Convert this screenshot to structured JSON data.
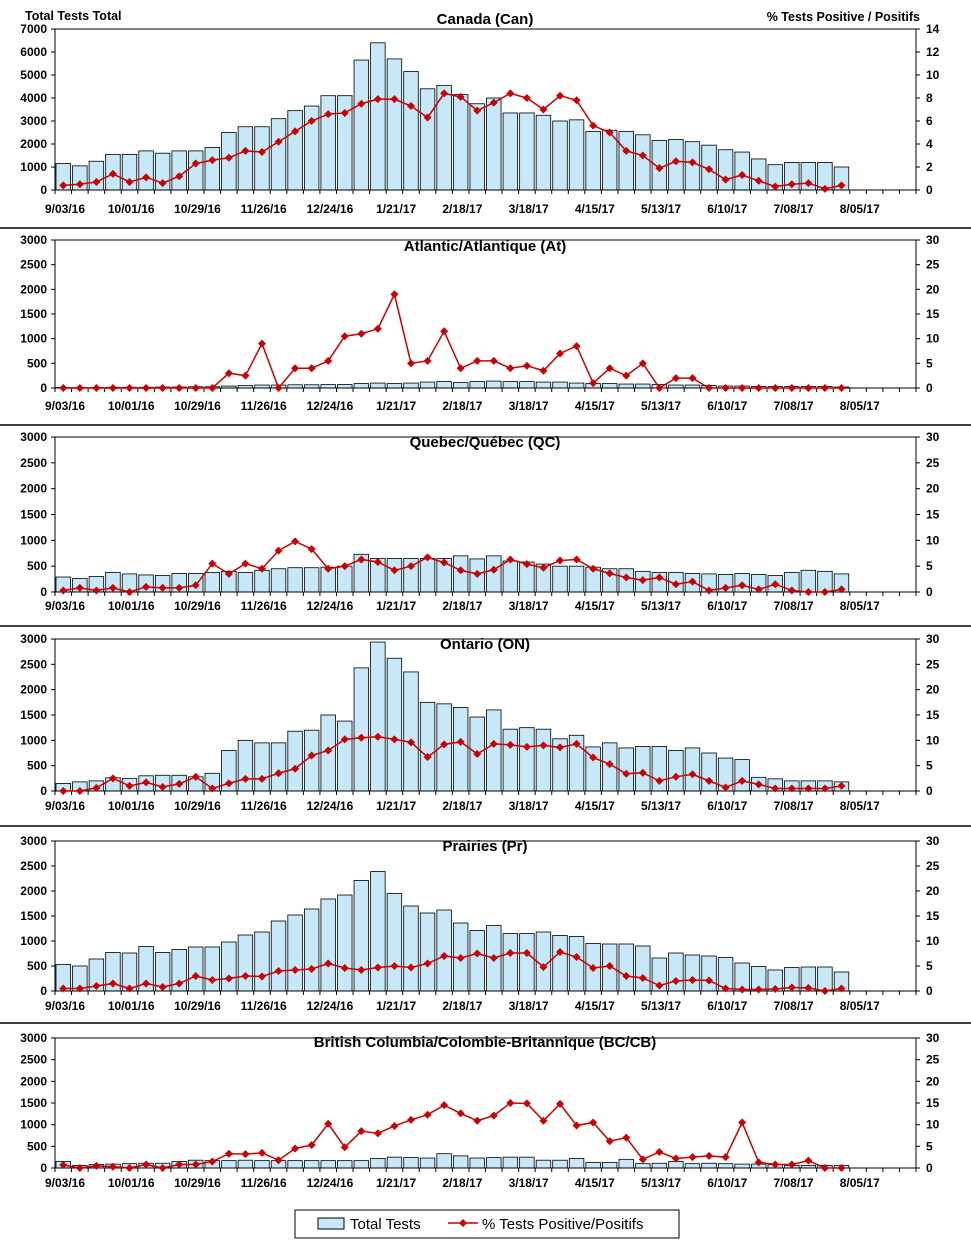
{
  "header": {
    "left_axis_label": "Total Tests  Total",
    "right_axis_label": "% Tests  Positive / Positifs"
  },
  "legend": {
    "bars_label": "Total Tests",
    "line_label": "% Tests Positive/Positifs"
  },
  "colors": {
    "bar_fill": "#c6e8f8",
    "bar_stroke": "#000000",
    "line": "#cc0000",
    "divider": "#000000"
  },
  "x_tick_labels": [
    "9/03/16",
    "10/01/16",
    "10/29/16",
    "11/26/16",
    "12/24/16",
    "1/21/17",
    "2/18/17",
    "3/18/17",
    "4/15/17",
    "5/13/17",
    "6/10/17",
    "7/08/17",
    "8/05/17"
  ],
  "chart_data": [
    {
      "type": "bar",
      "title": "Canada (Can)",
      "ylim": [
        0,
        7000
      ],
      "yticks": [
        0,
        1000,
        2000,
        3000,
        4000,
        5000,
        6000,
        7000
      ],
      "y2lim": [
        0,
        14
      ],
      "y2ticks": [
        0,
        2,
        4,
        6,
        8,
        10,
        12,
        14
      ],
      "total_tests": [
        1150,
        1050,
        1250,
        1550,
        1550,
        1700,
        1600,
        1700,
        1700,
        1850,
        2500,
        2750,
        2750,
        3100,
        3450,
        3650,
        4100,
        4100,
        5650,
        6400,
        5700,
        5150,
        4400,
        4550,
        4150,
        3750,
        4000,
        3350,
        3350,
        3250,
        3000,
        3050,
        2550,
        2600,
        2550,
        2400,
        2150,
        2200,
        2100,
        1950,
        1750,
        1650,
        1350,
        1100,
        1200,
        1200,
        1200,
        1000,
        null,
        null,
        null,
        null
      ],
      "pct_positive": [
        0.4,
        0.5,
        0.7,
        1.4,
        0.7,
        1.1,
        0.6,
        1.2,
        2.3,
        2.6,
        2.8,
        3.4,
        3.3,
        4.2,
        5.1,
        6.0,
        6.6,
        6.7,
        7.5,
        7.9,
        7.9,
        7.3,
        6.3,
        8.4,
        8.1,
        6.9,
        7.6,
        8.4,
        8.0,
        7.0,
        8.2,
        7.8,
        5.6,
        5.0,
        3.4,
        3.0,
        1.9,
        2.5,
        2.4,
        1.8,
        0.9,
        1.3,
        0.8,
        0.3,
        0.5,
        0.6,
        0.1,
        0.4,
        null,
        null,
        null,
        null
      ]
    },
    {
      "type": "bar",
      "title": "Atlantic/Atlantique  (At)",
      "ylim": [
        0,
        3000
      ],
      "yticks": [
        0,
        500,
        1000,
        1500,
        2000,
        2500,
        3000
      ],
      "y2lim": [
        0,
        30
      ],
      "y2ticks": [
        0,
        5,
        10,
        15,
        20,
        25,
        30
      ],
      "total_tests": [
        10,
        10,
        10,
        15,
        15,
        15,
        20,
        20,
        25,
        25,
        40,
        50,
        60,
        60,
        65,
        65,
        70,
        70,
        90,
        100,
        90,
        100,
        120,
        130,
        110,
        130,
        140,
        130,
        130,
        120,
        120,
        100,
        90,
        90,
        80,
        80,
        70,
        60,
        60,
        50,
        40,
        40,
        30,
        30,
        30,
        30,
        30,
        20,
        null,
        null,
        null,
        null
      ],
      "pct_positive": [
        0,
        0,
        0,
        0,
        0,
        0,
        0,
        0,
        0,
        0,
        3,
        2.5,
        9,
        0,
        4,
        4,
        5.5,
        10.5,
        11,
        12,
        19,
        5,
        5.5,
        11.5,
        4,
        5.5,
        5.5,
        4,
        4.5,
        3.5,
        7,
        8.5,
        1,
        4,
        2.5,
        5,
        0,
        2,
        2,
        0,
        0,
        0,
        0,
        0,
        0,
        0,
        0,
        0,
        null,
        null,
        null,
        null
      ]
    },
    {
      "type": "bar",
      "title": "Quebec/Québec (QC)",
      "ylim": [
        0,
        3000
      ],
      "yticks": [
        0,
        500,
        1000,
        1500,
        2000,
        2500,
        3000
      ],
      "y2lim": [
        0,
        30
      ],
      "y2ticks": [
        0,
        5,
        10,
        15,
        20,
        25,
        30
      ],
      "total_tests": [
        290,
        260,
        300,
        380,
        350,
        330,
        320,
        360,
        360,
        380,
        400,
        380,
        420,
        450,
        470,
        470,
        480,
        500,
        730,
        650,
        650,
        650,
        650,
        650,
        700,
        640,
        700,
        600,
        580,
        540,
        500,
        500,
        480,
        450,
        450,
        400,
        380,
        380,
        360,
        350,
        340,
        360,
        340,
        320,
        380,
        420,
        400,
        350,
        null,
        null,
        null,
        null
      ],
      "pct_positive": [
        0.3,
        0.8,
        0.3,
        0.8,
        0,
        1,
        0.8,
        0.8,
        1.3,
        5.5,
        3.5,
        5.5,
        4.5,
        8,
        9.8,
        8.3,
        4.5,
        5,
        6.3,
        5.8,
        4.2,
        5,
        6.7,
        5.7,
        4.2,
        3.5,
        4.3,
        6.3,
        5.4,
        4.7,
        6.1,
        6.3,
        4.5,
        3.6,
        2.8,
        2.3,
        2.8,
        1.5,
        2,
        0.3,
        0.8,
        1.3,
        0.5,
        1.5,
        0.3,
        0,
        0,
        0.5,
        null,
        null,
        null,
        null
      ]
    },
    {
      "type": "bar",
      "title": "Ontario (ON)",
      "ylim": [
        0,
        3000
      ],
      "yticks": [
        0,
        500,
        1000,
        1500,
        2000,
        2500,
        3000
      ],
      "y2lim": [
        0,
        30
      ],
      "y2ticks": [
        0,
        5,
        10,
        15,
        20,
        25,
        30
      ],
      "total_tests": [
        150,
        180,
        200,
        260,
        250,
        300,
        310,
        310,
        280,
        350,
        800,
        1000,
        950,
        950,
        1180,
        1200,
        1500,
        1380,
        2430,
        2940,
        2620,
        2350,
        1750,
        1720,
        1650,
        1460,
        1600,
        1220,
        1250,
        1220,
        1030,
        1100,
        870,
        950,
        850,
        880,
        880,
        800,
        850,
        750,
        650,
        620,
        270,
        240,
        200,
        200,
        200,
        180,
        null,
        null,
        null,
        null
      ],
      "pct_positive": [
        0,
        0,
        0.6,
        2.5,
        1,
        1.7,
        0.8,
        1.4,
        2.8,
        0.5,
        1.5,
        2.4,
        2.4,
        3.5,
        4.4,
        7,
        8,
        10.2,
        10.5,
        10.7,
        10.2,
        9.6,
        6.7,
        9.2,
        9.7,
        7.3,
        9.3,
        9.1,
        8.7,
        9,
        8.6,
        9.3,
        6.6,
        5.3,
        3.4,
        3.6,
        2,
        2.8,
        3.3,
        2,
        0.7,
        2,
        1.3,
        0.5,
        0.5,
        0.5,
        0.5,
        1,
        null,
        null,
        null,
        null
      ]
    },
    {
      "type": "bar",
      "title": "Prairies (Pr)",
      "ylim": [
        0,
        3000
      ],
      "yticks": [
        0,
        500,
        1000,
        1500,
        2000,
        2500,
        3000
      ],
      "y2lim": [
        0,
        30
      ],
      "y2ticks": [
        0,
        5,
        10,
        15,
        20,
        25,
        30
      ],
      "total_tests": [
        530,
        500,
        640,
        770,
        760,
        890,
        770,
        830,
        880,
        880,
        980,
        1120,
        1180,
        1400,
        1520,
        1640,
        1840,
        1920,
        2210,
        2390,
        1950,
        1700,
        1560,
        1620,
        1360,
        1210,
        1310,
        1150,
        1150,
        1180,
        1110,
        1090,
        950,
        940,
        940,
        900,
        660,
        760,
        720,
        700,
        670,
        560,
        490,
        420,
        470,
        480,
        480,
        380,
        null,
        null,
        null,
        null
      ],
      "pct_positive": [
        0.5,
        0.5,
        1,
        1.5,
        0.5,
        1.5,
        0.8,
        1.5,
        3,
        2.2,
        2.5,
        3,
        2.9,
        4,
        4.2,
        4.4,
        5.5,
        4.6,
        4.2,
        4.7,
        5,
        4.7,
        5.5,
        7,
        6.6,
        7.5,
        6.6,
        7.6,
        7.6,
        4.8,
        7.8,
        6.8,
        4.6,
        5,
        3,
        2.6,
        1.1,
        2,
        2.2,
        2.1,
        0.5,
        0.3,
        0.3,
        0.4,
        0.7,
        0.6,
        0,
        0.5,
        null,
        null,
        null,
        null
      ]
    },
    {
      "type": "bar",
      "title": "British Columbia/Colombie-Britannique (BC/CB)",
      "ylim": [
        0,
        3000
      ],
      "yticks": [
        0,
        500,
        1000,
        1500,
        2000,
        2500,
        3000
      ],
      "y2lim": [
        0,
        30
      ],
      "y2ticks": [
        0,
        5,
        10,
        15,
        20,
        25,
        30
      ],
      "total_tests": [
        150,
        60,
        80,
        90,
        100,
        110,
        110,
        150,
        180,
        170,
        170,
        180,
        170,
        170,
        170,
        170,
        170,
        170,
        170,
        220,
        250,
        240,
        230,
        330,
        280,
        230,
        240,
        250,
        250,
        180,
        180,
        220,
        130,
        130,
        200,
        100,
        110,
        150,
        100,
        110,
        100,
        90,
        90,
        80,
        60,
        60,
        60,
        60,
        null,
        null,
        null,
        null
      ],
      "pct_positive": [
        0.7,
        0,
        0.5,
        0.3,
        0,
        0.8,
        0,
        0.8,
        0.8,
        1.5,
        3.3,
        3.2,
        3.5,
        1.8,
        4.5,
        5.3,
        10.2,
        4.8,
        8.5,
        8,
        9.7,
        11.1,
        12.3,
        14.5,
        12.6,
        10.9,
        12.1,
        15,
        14.9,
        10.9,
        14.8,
        9.8,
        10.5,
        6.2,
        7,
        2,
        3.7,
        2.2,
        2.5,
        2.8,
        2.5,
        10.5,
        1.3,
        0.8,
        0.8,
        1.7,
        0,
        0,
        null,
        null,
        null,
        null
      ]
    }
  ]
}
